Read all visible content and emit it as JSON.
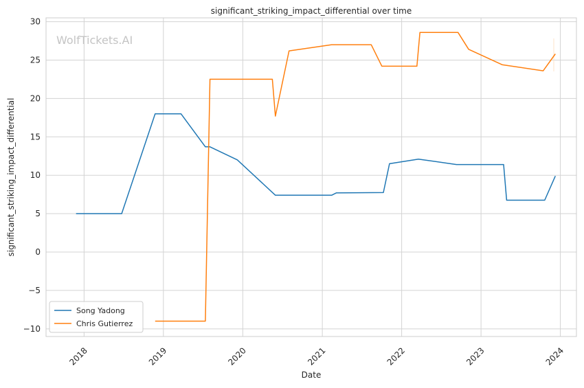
{
  "chart_data": {
    "type": "line",
    "title": "significant_striking_impact_differential over time",
    "xlabel": "Date",
    "ylabel": "significant_striking_impact_differential",
    "watermark": "WolfTickets.AI",
    "xlim": [
      "2017-07-10",
      "2024-03-15"
    ],
    "ylim": [
      -11,
      30.5
    ],
    "x_ticks": [
      "2018",
      "2019",
      "2020",
      "2021",
      "2022",
      "2023",
      "2024"
    ],
    "y_ticks": [
      -10,
      -5,
      0,
      5,
      10,
      15,
      20,
      25,
      30
    ],
    "grid": true,
    "legend": "lower-left",
    "series": [
      {
        "name": "Song Yadong",
        "color": "#1f77b4",
        "points": [
          [
            "2017-11-25",
            5.0
          ],
          [
            "2018-06-23",
            5.0
          ],
          [
            "2018-11-24",
            18.0
          ],
          [
            "2019-03-23",
            18.0
          ],
          [
            "2019-07-13",
            13.7
          ],
          [
            "2019-08-03",
            13.7
          ],
          [
            "2019-12-07",
            12.0
          ],
          [
            "2020-05-30",
            7.4
          ],
          [
            "2021-02-13",
            7.4
          ],
          [
            "2021-03-06",
            7.7
          ],
          [
            "2021-10-09",
            7.75
          ],
          [
            "2021-11-06",
            11.5
          ],
          [
            "2022-03-19",
            12.1
          ],
          [
            "2022-09-10",
            11.4
          ],
          [
            "2023-04-15",
            11.4
          ],
          [
            "2023-04-29",
            6.75
          ],
          [
            "2023-10-21",
            6.75
          ],
          [
            "2023-12-09",
            9.9
          ]
        ]
      },
      {
        "name": "Chris Gutierrez",
        "color": "#ff7f0e",
        "points": [
          [
            "2018-11-24",
            -9.0
          ],
          [
            "2019-07-13",
            -9.0
          ],
          [
            "2019-08-03",
            22.5
          ],
          [
            "2020-05-16",
            22.5
          ],
          [
            "2020-05-30",
            17.7
          ],
          [
            "2020-08-01",
            26.2
          ],
          [
            "2021-02-13",
            27.0
          ],
          [
            "2021-08-14",
            27.0
          ],
          [
            "2021-10-02",
            24.2
          ],
          [
            "2022-03-12",
            24.2
          ],
          [
            "2022-03-26",
            28.6
          ],
          [
            "2022-09-17",
            28.6
          ],
          [
            "2022-11-05",
            26.4
          ],
          [
            "2023-04-08",
            24.4
          ],
          [
            "2023-10-14",
            23.6
          ],
          [
            "2023-12-09",
            25.8
          ]
        ]
      }
    ]
  }
}
